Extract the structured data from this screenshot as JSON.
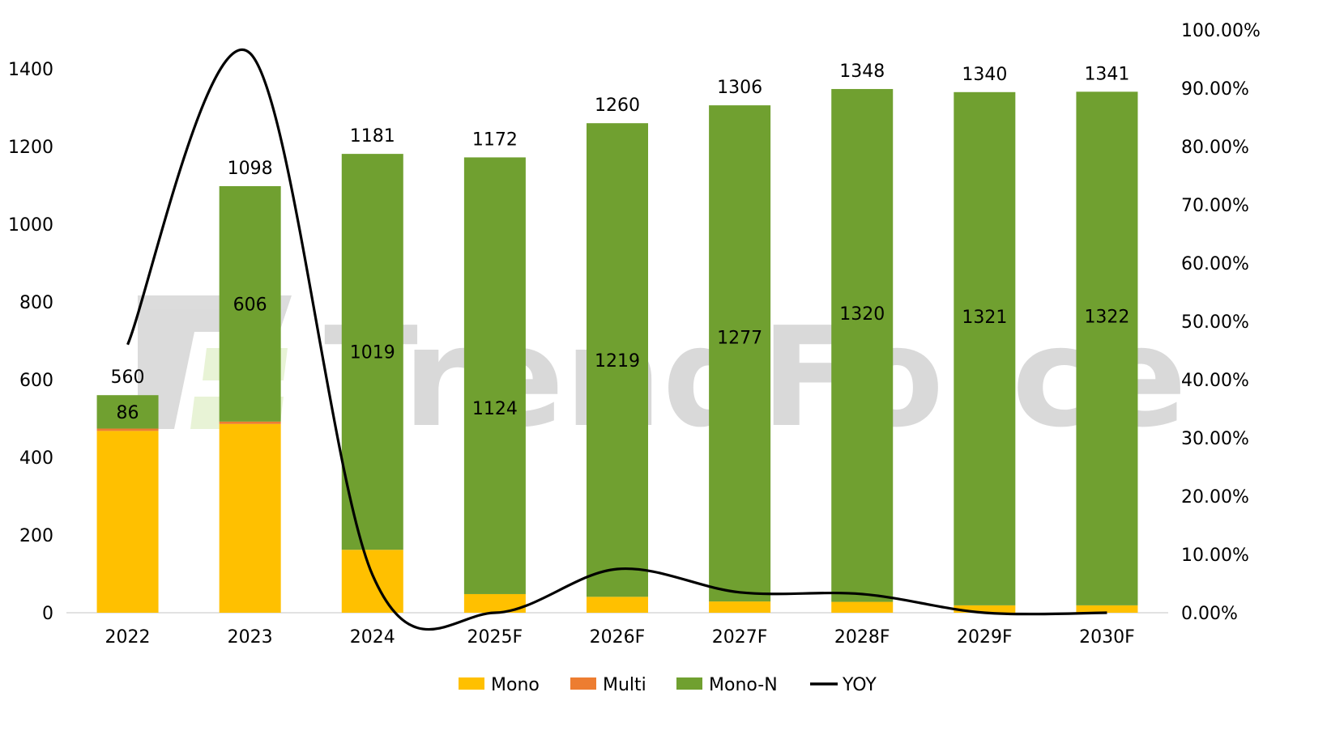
{
  "watermark": "TrendForce",
  "colors": {
    "Mono": "#ffc000",
    "Multi": "#ed7d31",
    "Mono-N": "#70a030",
    "YOY": "#000000"
  },
  "chart_data": {
    "type": "bar",
    "stacked": true,
    "categories": [
      "2022",
      "2023",
      "2024",
      "2025F",
      "2026F",
      "2027F",
      "2028F",
      "2029F",
      "2030F"
    ],
    "series": [
      {
        "name": "Mono",
        "values": [
          468,
          486,
          162,
          48,
          41,
          29,
          28,
          19,
          19
        ]
      },
      {
        "name": "Multi",
        "values": [
          6,
          6,
          0,
          0,
          0,
          0,
          0,
          0,
          0
        ]
      },
      {
        "name": "Mono-N",
        "values": [
          86,
          606,
          1019,
          1124,
          1219,
          1277,
          1320,
          1321,
          1322
        ]
      }
    ],
    "totals": [
      560,
      1098,
      1181,
      1172,
      1260,
      1306,
      1348,
      1340,
      1341
    ],
    "line": {
      "name": "YOY",
      "axis": "right",
      "values": [
        0.46,
        0.96,
        0.065,
        0.0,
        0.075,
        0.035,
        0.032,
        0.0,
        0.0
      ]
    },
    "ylim": [
      0,
      1400
    ],
    "yticks": [
      "0",
      "200",
      "400",
      "600",
      "800",
      "1000",
      "1200",
      "1400"
    ],
    "y2lim": [
      0,
      1
    ],
    "y2ticks": [
      "0.00%",
      "10.00%",
      "20.00%",
      "30.00%",
      "40.00%",
      "50.00%",
      "60.00%",
      "70.00%",
      "80.00%",
      "90.00%",
      "100.00%"
    ],
    "grid": false,
    "legend": {
      "position": "bottom",
      "entries": [
        "Mono",
        "Multi",
        "Mono-N",
        "YOY"
      ]
    }
  }
}
